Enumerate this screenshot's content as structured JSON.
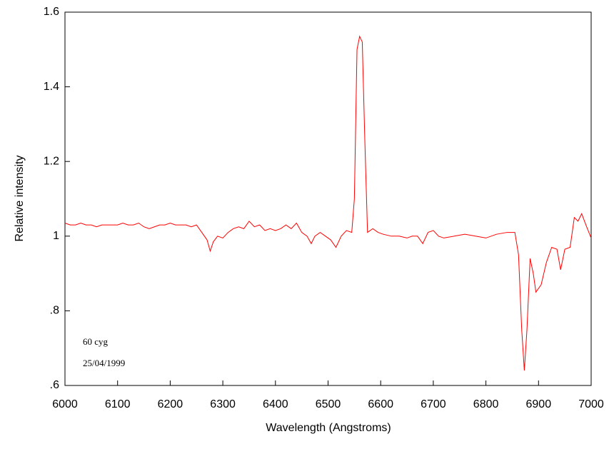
{
  "chart_data": {
    "type": "line",
    "xlabel": "Wavelength (Angstroms)",
    "ylabel": "Relative intensity",
    "annotations": [
      "60 cyg",
      "25/04/1999"
    ],
    "xlim": [
      6000,
      7000
    ],
    "xticks": [
      6000,
      6100,
      6200,
      6300,
      6400,
      6500,
      6600,
      6700,
      6800,
      6900,
      7000
    ],
    "ylim": [
      0.6,
      1.6
    ],
    "yticks": [
      {
        "value": 0.6,
        "label": ".6"
      },
      {
        "value": 0.8,
        "label": ".8"
      },
      1,
      1.2,
      1.4,
      1.6
    ],
    "x": [
      6000,
      6010,
      6020,
      6030,
      6040,
      6050,
      6060,
      6070,
      6080,
      6090,
      6100,
      6110,
      6120,
      6130,
      6140,
      6150,
      6160,
      6170,
      6180,
      6190,
      6200,
      6210,
      6220,
      6230,
      6240,
      6250,
      6260,
      6270,
      6276,
      6282,
      6290,
      6300,
      6310,
      6320,
      6330,
      6340,
      6350,
      6360,
      6370,
      6380,
      6390,
      6400,
      6410,
      6420,
      6430,
      6440,
      6450,
      6460,
      6468,
      6475,
      6485,
      6495,
      6505,
      6515,
      6525,
      6535,
      6545,
      6550,
      6555,
      6560,
      6565,
      6570,
      6575,
      6585,
      6595,
      6605,
      6620,
      6635,
      6650,
      6660,
      6670,
      6680,
      6690,
      6700,
      6710,
      6720,
      6740,
      6760,
      6780,
      6800,
      6820,
      6840,
      6855,
      6862,
      6868,
      6873,
      6878,
      6884,
      6890,
      6895,
      6905,
      6915,
      6925,
      6935,
      6942,
      6950,
      6960,
      6968,
      6975,
      6982,
      6990,
      7000
    ],
    "series": [
      {
        "name": "60 cyg",
        "color": "#ff0000",
        "values": [
          1.035,
          1.03,
          1.03,
          1.035,
          1.03,
          1.03,
          1.025,
          1.03,
          1.03,
          1.03,
          1.03,
          1.035,
          1.03,
          1.03,
          1.035,
          1.025,
          1.02,
          1.025,
          1.03,
          1.03,
          1.035,
          1.03,
          1.03,
          1.03,
          1.025,
          1.03,
          1.01,
          0.99,
          0.96,
          0.985,
          1.0,
          0.995,
          1.01,
          1.02,
          1.025,
          1.02,
          1.04,
          1.025,
          1.03,
          1.015,
          1.02,
          1.015,
          1.02,
          1.03,
          1.02,
          1.035,
          1.01,
          1.0,
          0.98,
          1.0,
          1.01,
          1.0,
          0.99,
          0.97,
          1.0,
          1.015,
          1.01,
          1.1,
          1.5,
          1.535,
          1.52,
          1.25,
          1.01,
          1.02,
          1.01,
          1.005,
          1.0,
          1.0,
          0.995,
          1.0,
          1.0,
          0.98,
          1.01,
          1.015,
          1.0,
          0.995,
          1.0,
          1.005,
          1.0,
          0.995,
          1.005,
          1.01,
          1.01,
          0.95,
          0.75,
          0.64,
          0.75,
          0.94,
          0.9,
          0.85,
          0.87,
          0.93,
          0.97,
          0.965,
          0.91,
          0.965,
          0.97,
          1.05,
          1.04,
          1.06,
          1.03,
          0.995
        ]
      }
    ]
  }
}
